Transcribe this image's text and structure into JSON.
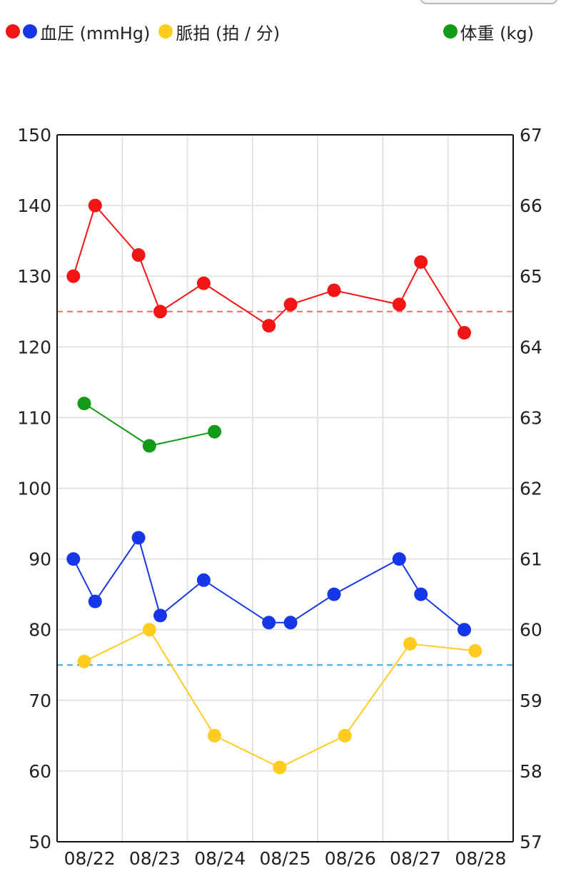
{
  "legend": {
    "bp": {
      "label": "血圧 (mmHg)",
      "colors": [
        "#f31414",
        "#1537e8"
      ]
    },
    "pulse": {
      "label": "脈拍 (拍 / 分)",
      "color": "#ffcc1f"
    },
    "weight": {
      "label": "体重 (kg)",
      "color": "#139a16"
    }
  },
  "chart_data": {
    "type": "line",
    "title": "",
    "xlabel": "",
    "ylabel": "",
    "grid": true,
    "categories": [
      "08/22",
      "08/23",
      "08/24",
      "08/25",
      "08/26",
      "08/27",
      "08/28"
    ],
    "ylim": [
      50,
      150
    ],
    "yticks": [
      "150",
      "140",
      "130",
      "120",
      "110",
      "100",
      "90",
      "80",
      "70",
      "60",
      "50"
    ],
    "y2lim": [
      57,
      67
    ],
    "y2ticks": [
      "67",
      "66",
      "65",
      "64",
      "63",
      "62",
      "61",
      "60",
      "59",
      "58",
      "57"
    ],
    "reference_lines": [
      {
        "value": 125,
        "axis": "left",
        "color": "#f06b6b"
      },
      {
        "value": 75,
        "axis": "left",
        "color": "#3aa6e8"
      }
    ],
    "series": [
      {
        "axis": "left",
        "color": "#f31414",
        "values": [
          {
            "x": "08/22 06:00",
            "y": 130
          },
          {
            "x": "08/22 14:00",
            "y": 140
          },
          {
            "x": "08/23 06:00",
            "y": 133
          },
          {
            "x": "08/23 14:00",
            "y": 125
          },
          {
            "x": "08/24 06:00",
            "y": 129
          },
          {
            "x": "08/25 06:00",
            "y": 123
          },
          {
            "x": "08/25 14:00",
            "y": 126
          },
          {
            "x": "08/26 06:00",
            "y": 128
          },
          {
            "x": "08/27 06:00",
            "y": 126
          },
          {
            "x": "08/27 14:00",
            "y": 132
          },
          {
            "x": "08/28 06:00",
            "y": 122
          }
        ]
      },
      {
        "axis": "left",
        "color": "#1537e8",
        "values": [
          {
            "x": "08/22 06:00",
            "y": 90
          },
          {
            "x": "08/22 14:00",
            "y": 84
          },
          {
            "x": "08/23 06:00",
            "y": 93
          },
          {
            "x": "08/23 14:00",
            "y": 82
          },
          {
            "x": "08/24 06:00",
            "y": 87
          },
          {
            "x": "08/25 06:00",
            "y": 81
          },
          {
            "x": "08/25 14:00",
            "y": 81
          },
          {
            "x": "08/26 06:00",
            "y": 85
          },
          {
            "x": "08/27 06:00",
            "y": 90
          },
          {
            "x": "08/27 14:00",
            "y": 85
          },
          {
            "x": "08/28 06:00",
            "y": 80
          }
        ]
      },
      {
        "axis": "left",
        "color": "#ffcc1f",
        "values": [
          {
            "x": "08/22 10:00",
            "y": 75.5
          },
          {
            "x": "08/23 10:00",
            "y": 80
          },
          {
            "x": "08/24 10:00",
            "y": 65
          },
          {
            "x": "08/25 10:00",
            "y": 60.5
          },
          {
            "x": "08/26 10:00",
            "y": 65
          },
          {
            "x": "08/27 10:00",
            "y": 78
          },
          {
            "x": "08/28 10:00",
            "y": 77
          }
        ]
      },
      {
        "axis": "right",
        "color": "#139a16",
        "values": [
          {
            "x": "08/22 10:00",
            "y": 63.2
          },
          {
            "x": "08/23 10:00",
            "y": 62.6
          },
          {
            "x": "08/24 10:00",
            "y": 62.8
          }
        ]
      }
    ]
  }
}
